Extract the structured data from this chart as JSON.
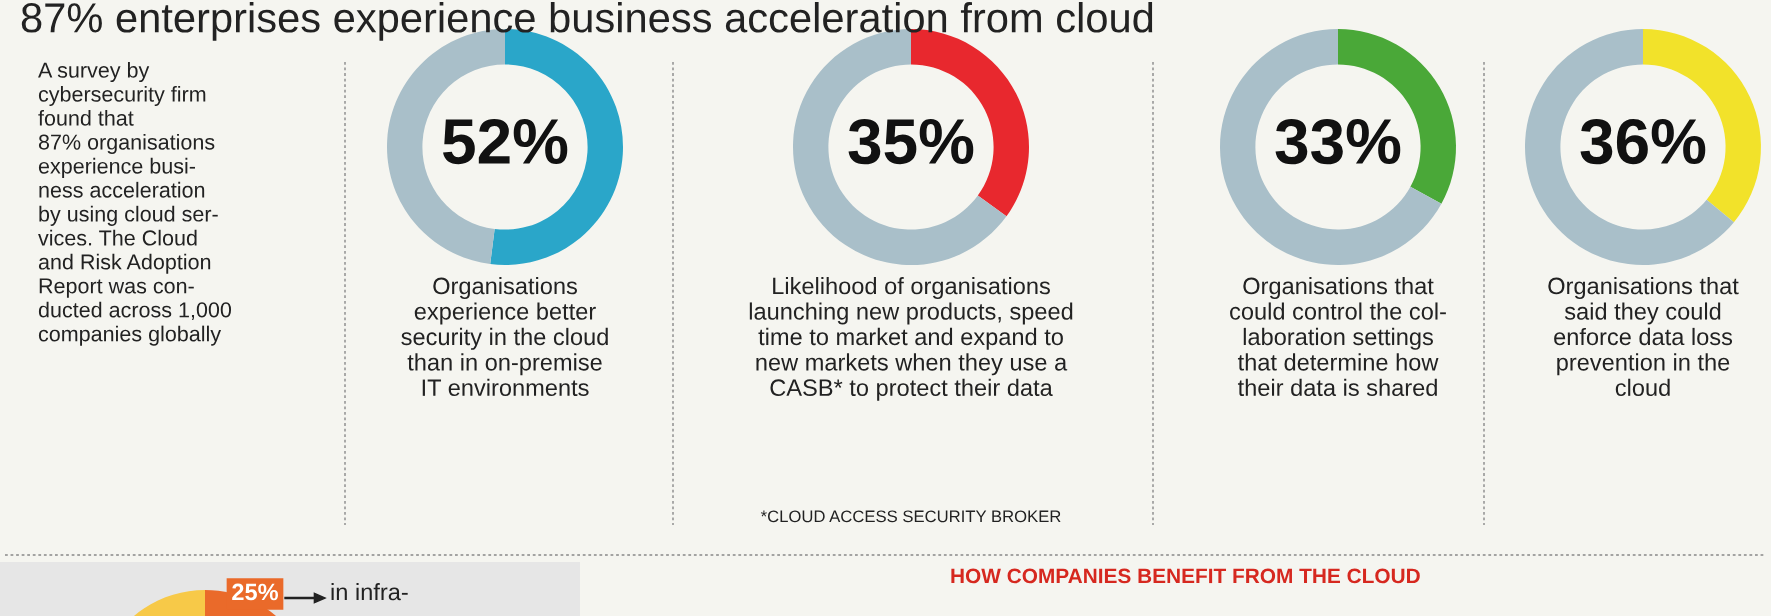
{
  "chart_data": [
    {
      "type": "other",
      "title": "87% enterprises experience business acceleration from cloud",
      "annotations": [
        "A survey by\ncybersecurity firm\nfound that\n87% organisations\nexperience busi-\nness acceleration\nby using cloud ser-\nvices. The Cloud\nand Risk Adoption\nReport was con-\nducted across 1,000\ncompanies globally"
      ]
    },
    {
      "type": "donut",
      "categories": [
        null,
        null
      ],
      "values": [
        52,
        48
      ],
      "colors": [
        "#2aa6c9",
        "#a9bfc9"
      ],
      "value_labels": [
        "52%",
        null
      ],
      "annotations": [
        "Organisations\nexperience better\nsecurity in the cloud\nthan in on-premise\nIT environments"
      ]
    },
    {
      "type": "donut",
      "categories": [
        null,
        null
      ],
      "values": [
        35,
        65
      ],
      "colors": [
        "#e8282e",
        "#a9bfc9"
      ],
      "value_labels": [
        "35%",
        null
      ],
      "annotations": [
        "Likelihood of organisations\nlaunching new products, speed\ntime to market and expand to\nnew markets when they use a\nCASB* to protect their data",
        "*CLOUD ACCESS SECURITY BROKER"
      ]
    },
    {
      "type": "donut",
      "categories": [
        null,
        null
      ],
      "values": [
        33,
        67
      ],
      "colors": [
        "#4aa838",
        "#a9bfc9"
      ],
      "value_labels": [
        "33%",
        null
      ],
      "annotations": [
        "Organisations that\ncould control the col-\nlaboration settings\nthat determine how\ntheir data is shared"
      ]
    },
    {
      "type": "donut",
      "categories": [
        null,
        null
      ],
      "values": [
        36,
        64
      ],
      "colors": [
        "#f2e22a",
        "#a9bfc9"
      ],
      "value_labels": [
        "36%",
        null
      ],
      "annotations": [
        "Organisations that\nsaid they could\nenforce data loss\nprevention in the\ncloud"
      ]
    },
    {
      "type": "pie",
      "categories": [
        null,
        null
      ],
      "values": [
        25,
        75
      ],
      "colors": [
        "#ea6a2a",
        "#f7c948"
      ],
      "value_labels": [
        "25%",
        null
      ],
      "annotations": [
        "in infra-"
      ]
    },
    {
      "type": "other",
      "annotations": [
        "HOW COMPANIES BENEFIT FROM THE CLOUD"
      ]
    }
  ]
}
